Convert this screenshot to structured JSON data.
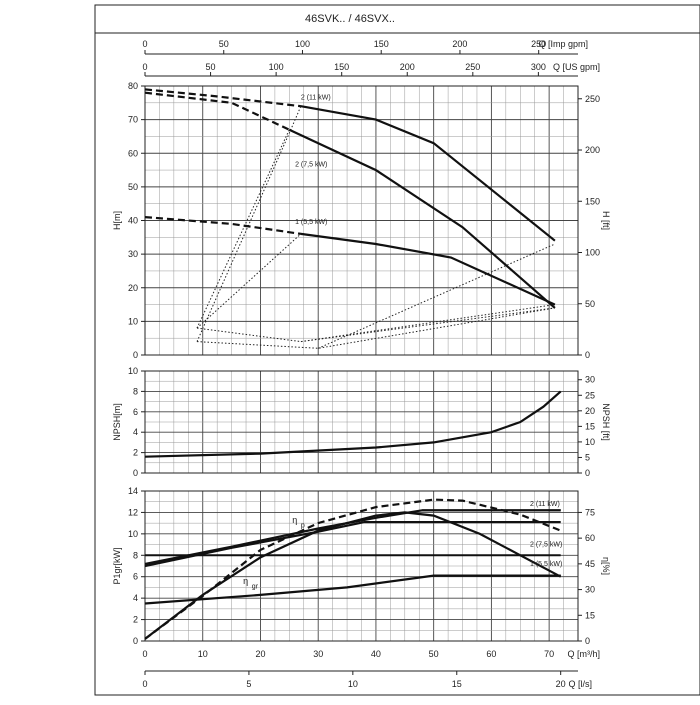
{
  "title": "46SVK.. / 46SVX..",
  "top_axes": {
    "imp": {
      "label": "Q [Imp gpm]",
      "ticks": [
        0,
        50,
        100,
        150,
        200,
        250
      ]
    },
    "us": {
      "label": "Q [US gpm]",
      "ticks": [
        0,
        50,
        100,
        150,
        200,
        250,
        300
      ]
    }
  },
  "bottom_axes": {
    "m3h": {
      "label": "Q [m³/h]",
      "ticks": [
        0,
        10,
        20,
        30,
        40,
        50,
        60,
        70
      ]
    },
    "ls": {
      "label": "Q [l/s]",
      "ticks": [
        0,
        5,
        10,
        15,
        20
      ]
    }
  },
  "chart_data": [
    {
      "type": "line",
      "panel": "head",
      "ylabel": "H[m]",
      "ylabel_right": "H [ft]",
      "x_unit": "m³/h",
      "xlim": [
        0,
        75
      ],
      "ylim": [
        0,
        80
      ],
      "yticks": [
        0,
        10,
        20,
        30,
        40,
        50,
        60,
        70,
        80
      ],
      "yticks_right": [
        0,
        50,
        100,
        150,
        200,
        250
      ],
      "series": [
        {
          "name": "2 (11 kW)",
          "solid": [
            [
              27,
              74
            ],
            [
              40,
              70
            ],
            [
              50,
              63
            ],
            [
              71,
              34
            ]
          ],
          "dashed": [
            [
              0,
              79
            ],
            [
              12,
              77
            ],
            [
              27,
              74
            ]
          ]
        },
        {
          "name": "2 (7,5 kW)",
          "solid": [
            [
              25,
              67
            ],
            [
              40,
              55
            ],
            [
              55,
              38
            ],
            [
              71,
              14
            ]
          ],
          "dashed": [
            [
              0,
              78
            ],
            [
              15,
              75
            ],
            [
              25,
              67
            ]
          ]
        },
        {
          "name": "1 (5,5 kW)",
          "solid": [
            [
              27,
              36
            ],
            [
              40,
              33
            ],
            [
              53,
              29
            ],
            [
              71,
              15
            ]
          ],
          "dashed": [
            [
              0,
              41
            ],
            [
              15,
              39
            ],
            [
              27,
              36
            ]
          ]
        }
      ],
      "limit_curves": [
        [
          [
            9,
            8
          ],
          [
            27,
            4
          ],
          [
            71,
            15
          ]
        ],
        [
          [
            9,
            4
          ],
          [
            30,
            2
          ],
          [
            71,
            14
          ]
        ],
        [
          [
            9,
            4
          ],
          [
            25,
            66
          ],
          [
            27,
            74
          ]
        ],
        [
          [
            9,
            8
          ],
          [
            25,
            67
          ]
        ],
        [
          [
            9,
            8
          ],
          [
            27,
            36
          ]
        ],
        [
          [
            30,
            2
          ],
          [
            71,
            33
          ]
        ],
        [
          [
            27,
            4
          ],
          [
            71,
            14
          ]
        ]
      ]
    },
    {
      "type": "line",
      "panel": "npsh",
      "ylabel": "NPSH[m]",
      "ylabel_right": "NPSH [ft]",
      "x_unit": "m³/h",
      "xlim": [
        0,
        75
      ],
      "ylim": [
        0,
        10
      ],
      "yticks": [
        0,
        2,
        4,
        6,
        8,
        10
      ],
      "yticks_right": [
        0,
        5,
        10,
        15,
        20,
        25,
        30
      ],
      "series": [
        {
          "name": "NPSH",
          "points": [
            [
              0,
              1.6
            ],
            [
              20,
              1.9
            ],
            [
              40,
              2.5
            ],
            [
              50,
              3.0
            ],
            [
              60,
              4.0
            ],
            [
              65,
              5.0
            ],
            [
              69,
              6.5
            ],
            [
              72,
              8.0
            ]
          ]
        }
      ]
    },
    {
      "type": "line",
      "panel": "power-efficiency",
      "ylabel": "P1gr[kW]",
      "ylabel_right": "η[%]",
      "x_unit": "m³/h",
      "xlim": [
        0,
        75
      ],
      "ylim": [
        0,
        14
      ],
      "yticks": [
        0,
        2,
        4,
        6,
        8,
        10,
        12,
        14
      ],
      "yticks_right": [
        0,
        15,
        30,
        45,
        60,
        75
      ],
      "annotations": [
        "η",
        "p",
        "η",
        "gr"
      ],
      "series": [
        {
          "name": "2 (11 kW)",
          "points": [
            [
              0,
              7.2
            ],
            [
              15,
              8.8
            ],
            [
              30,
              10.5
            ],
            [
              40,
              11.5
            ],
            [
              48,
              12.2
            ],
            [
              72,
              12.2
            ]
          ]
        },
        {
          "name": "2 (7,5 kW)",
          "points": [
            [
              0,
              7.0
            ],
            [
              15,
              8.7
            ],
            [
              30,
              10.2
            ],
            [
              38,
              11.1
            ],
            [
              72,
              11.1
            ]
          ]
        },
        {
          "name": "1 (5,5 kW)",
          "points": [
            [
              0,
              3.5
            ],
            [
              20,
              4.3
            ],
            [
              35,
              5.0
            ],
            [
              50,
              6.1
            ],
            [
              72,
              6.1
            ]
          ]
        },
        {
          "name": "ηp",
          "style": "dashed",
          "points": [
            [
              0,
              0.2
            ],
            [
              10,
              4.2
            ],
            [
              20,
              8.5
            ],
            [
              30,
              11.0
            ],
            [
              40,
              12.5
            ],
            [
              50,
              13.2
            ],
            [
              55,
              13.1
            ],
            [
              65,
              11.8
            ],
            [
              72,
              10.3
            ]
          ]
        },
        {
          "name": "ηgr",
          "style": "solid",
          "points": [
            [
              0,
              0.2
            ],
            [
              10,
              4.3
            ],
            [
              20,
              7.8
            ],
            [
              30,
              10.3
            ],
            [
              40,
              11.7
            ],
            [
              45,
              12.0
            ],
            [
              50,
              11.7
            ],
            [
              58,
              10.0
            ],
            [
              65,
              8.0
            ],
            [
              72,
              6.0
            ]
          ]
        }
      ],
      "horizontal_lines": [
        {
          "y": 12.2,
          "from": 48,
          "to": 72
        },
        {
          "y": 8.0,
          "from": 0,
          "to": 72
        },
        {
          "y": 6.1,
          "from": 50,
          "to": 72
        }
      ]
    }
  ]
}
